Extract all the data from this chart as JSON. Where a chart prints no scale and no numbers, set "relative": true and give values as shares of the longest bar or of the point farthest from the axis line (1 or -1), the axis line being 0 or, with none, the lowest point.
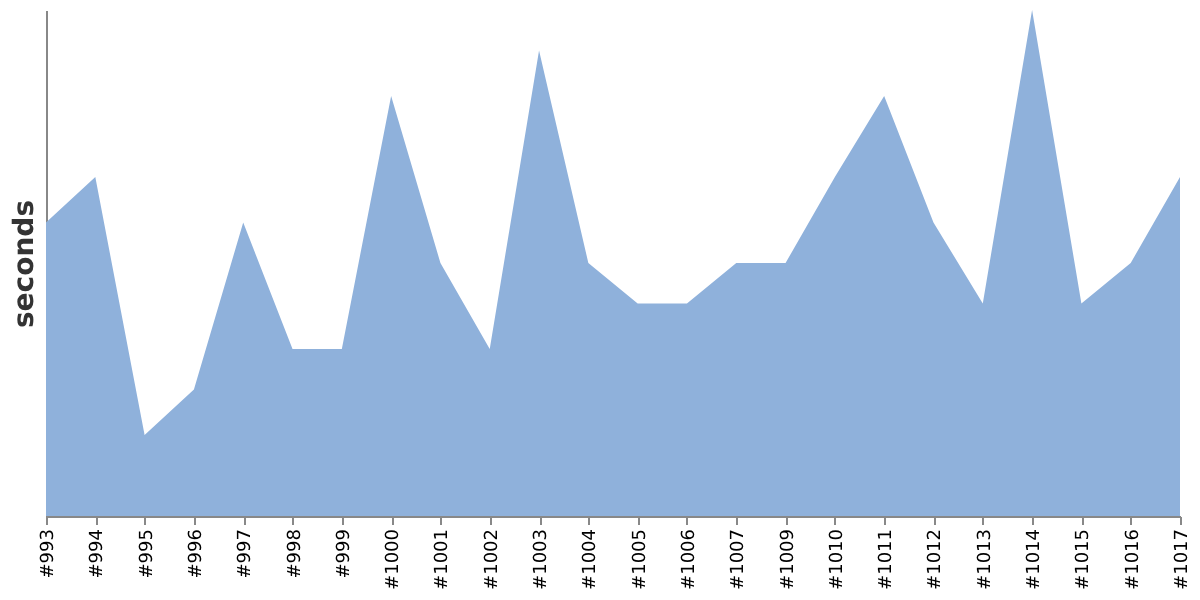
{
  "chart_data": {
    "type": "area",
    "ylabel": "seconds",
    "relative": true,
    "grid": false,
    "categories": [
      "#993",
      "#994",
      "#995",
      "#996",
      "#997",
      "#998",
      "#999",
      "#1000",
      "#1001",
      "#1002",
      "#1003",
      "#1004",
      "#1005",
      "#1006",
      "#1007",
      "#1009",
      "#1010",
      "#1011",
      "#1012",
      "#1013",
      "#1014",
      "#1015",
      "#1016",
      "#1017"
    ],
    "series": [
      {
        "color": "#8fb1db",
        "values": [
          0.58,
          0.67,
          0.16,
          0.25,
          0.58,
          0.33,
          0.33,
          0.83,
          0.5,
          0.33,
          0.92,
          0.5,
          0.42,
          0.42,
          0.5,
          0.5,
          0.67,
          0.83,
          0.58,
          0.42,
          1,
          0.42,
          0.5,
          0.67
        ]
      }
    ]
  }
}
